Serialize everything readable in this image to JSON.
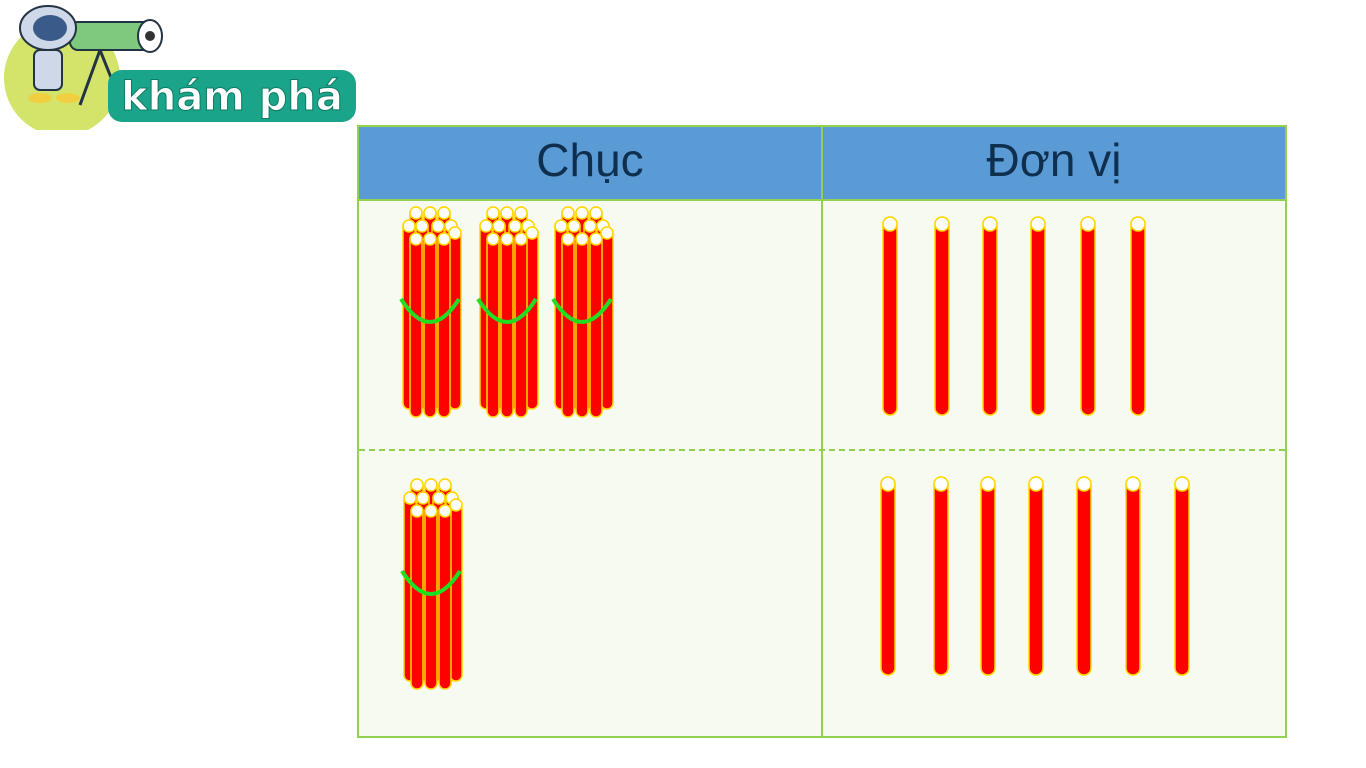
{
  "logo": {
    "text": "khám phá"
  },
  "table": {
    "headers": {
      "tens": "Chục",
      "units": "Đơn vị"
    },
    "rows": [
      {
        "tens_bundles": 3,
        "unit_sticks": 6
      },
      {
        "tens_bundles": 1,
        "unit_sticks": 7
      }
    ]
  },
  "colors": {
    "header": "#5b9bd5",
    "border": "#92d050",
    "stick": "#ff0000",
    "stick_outline": "#ffd700",
    "band": "#22dd22"
  }
}
